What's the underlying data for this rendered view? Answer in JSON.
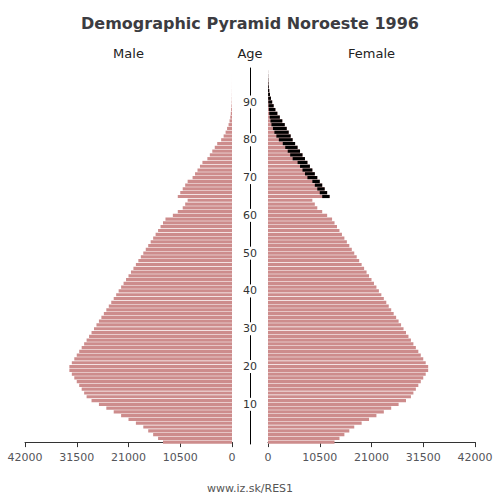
{
  "chart_data": {
    "type": "bar",
    "orientation": "horizontal",
    "title": "Demographic Pyramid Noroeste 1996",
    "ylabel": "Age",
    "annotations": [
      "www.iz.sk/RES1"
    ],
    "categories": [
      0,
      1,
      2,
      3,
      4,
      5,
      6,
      7,
      8,
      9,
      10,
      11,
      12,
      13,
      14,
      15,
      16,
      17,
      18,
      19,
      20,
      21,
      22,
      23,
      24,
      25,
      26,
      27,
      28,
      29,
      30,
      31,
      32,
      33,
      34,
      35,
      36,
      37,
      38,
      39,
      40,
      41,
      42,
      43,
      44,
      45,
      46,
      47,
      48,
      49,
      50,
      51,
      52,
      53,
      54,
      55,
      56,
      57,
      58,
      59,
      60,
      61,
      62,
      63,
      64,
      65,
      66,
      67,
      68,
      69,
      70,
      71,
      72,
      73,
      74,
      75,
      76,
      77,
      78,
      79,
      80,
      81,
      82,
      83,
      84,
      85,
      86,
      87,
      88,
      89,
      90,
      91,
      92,
      93,
      94,
      95,
      96,
      97,
      98
    ],
    "series": [
      {
        "name": "Male",
        "color": "#cd8c8c",
        "values": [
          14000,
          15000,
          16000,
          17000,
          18000,
          19500,
          21000,
          22500,
          24000,
          25500,
          27000,
          28500,
          29500,
          30000,
          30500,
          31000,
          31500,
          32000,
          32500,
          33000,
          33000,
          32500,
          32000,
          31500,
          31000,
          30500,
          30000,
          29500,
          29000,
          28500,
          28000,
          27500,
          27000,
          26500,
          26000,
          25500,
          25000,
          24500,
          24000,
          23500,
          23000,
          22500,
          22000,
          21500,
          21000,
          20500,
          20000,
          19500,
          19000,
          18500,
          18000,
          17500,
          17000,
          16500,
          16000,
          15500,
          15000,
          14500,
          14000,
          13500,
          12000,
          11000,
          10000,
          9500,
          9000,
          11000,
          10500,
          10000,
          9500,
          9000,
          8000,
          7500,
          7000,
          6500,
          6000,
          5000,
          4500,
          4000,
          3500,
          3000,
          2200,
          1700,
          1300,
          1000,
          700,
          500,
          350,
          250,
          170,
          110,
          65,
          40,
          22,
          13,
          7,
          4,
          2,
          1,
          0
        ]
      },
      {
        "name": "Female",
        "color": "#cd8c8c",
        "values": [
          13500,
          14500,
          15500,
          16500,
          17500,
          19000,
          20500,
          22000,
          23500,
          25000,
          26500,
          28000,
          29000,
          29500,
          30000,
          30500,
          31000,
          31500,
          32000,
          32500,
          32500,
          32000,
          31500,
          31000,
          30500,
          30000,
          29500,
          29000,
          28500,
          28000,
          27500,
          27000,
          26500,
          26000,
          25500,
          25000,
          24500,
          24000,
          23500,
          23000,
          22500,
          22000,
          21500,
          21000,
          20500,
          20000,
          19500,
          19000,
          18500,
          18000,
          17500,
          17000,
          16500,
          16000,
          15500,
          15000,
          14500,
          14000,
          13500,
          13000,
          12000,
          11000,
          10000,
          9500,
          9000,
          12500,
          12000,
          11500,
          11000,
          10500,
          10000,
          9500,
          9000,
          8500,
          8000,
          7500,
          7000,
          6500,
          6000,
          5500,
          5000,
          4600,
          4200,
          3800,
          3400,
          2900,
          2400,
          1900,
          1500,
          1150,
          850,
          600,
          400,
          260,
          160,
          95,
          55,
          30,
          15
        ]
      },
      {
        "color": "black",
        "stacked": true,
        "values": [
          null,
          null,
          null,
          null,
          null,
          null,
          null,
          null,
          null,
          null,
          null,
          null,
          null,
          null,
          null,
          null,
          null,
          null,
          null,
          null,
          null,
          null,
          null,
          null,
          null,
          null,
          null,
          null,
          null,
          null,
          null,
          null,
          null,
          null,
          null,
          null,
          null,
          null,
          null,
          null,
          null,
          null,
          null,
          null,
          null,
          null,
          null,
          null,
          null,
          null,
          null,
          null,
          null,
          null,
          null,
          null,
          null,
          null,
          null,
          null,
          null,
          null,
          null,
          null,
          null,
          1500,
          1500,
          1500,
          1500,
          1500,
          2000,
          2000,
          2000,
          2000,
          2000,
          2500,
          2500,
          2500,
          2500,
          2500,
          2800,
          2900,
          2900,
          2800,
          2700,
          2400,
          2050,
          1650,
          1330,
          1040,
          785,
          560,
          378,
          247,
          153,
          91,
          53,
          29,
          15
        ]
      }
    ],
    "xlim": [
      0,
      42000
    ],
    "xticks": [
      0,
      10500,
      21000,
      31500,
      42000
    ],
    "ylim": [
      -0.5,
      99
    ],
    "yticks": [
      10,
      20,
      30,
      40,
      50,
      60,
      70,
      80,
      90
    ],
    "grid": false
  }
}
